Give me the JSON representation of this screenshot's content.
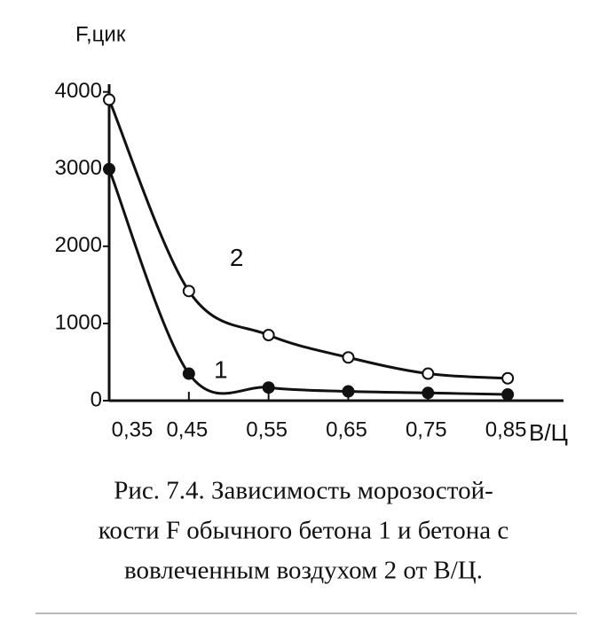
{
  "chart_data": {
    "type": "line",
    "y_label": "F,цик",
    "x_label": "В/Ц",
    "xlim": [
      0.35,
      0.92
    ],
    "ylim": [
      0,
      4100
    ],
    "xticks": [
      {
        "value": 0.35,
        "label": "0,35"
      },
      {
        "value": 0.45,
        "label": "0,45"
      },
      {
        "value": 0.55,
        "label": "0,55"
      },
      {
        "value": 0.65,
        "label": "0,65"
      },
      {
        "value": 0.75,
        "label": "0,75"
      },
      {
        "value": 0.85,
        "label": "0,85"
      }
    ],
    "yticks": [
      0,
      1000,
      2000,
      3000,
      4000
    ],
    "x": [
      0.35,
      0.45,
      0.55,
      0.65,
      0.75,
      0.85
    ],
    "series": [
      {
        "name": "1",
        "color": "#111111",
        "marker": "filled",
        "values": [
          3000,
          350,
          170,
          120,
          100,
          80
        ]
      },
      {
        "name": "2",
        "color": "#111111",
        "marker": "open",
        "values": [
          3900,
          1420,
          850,
          560,
          350,
          290
        ]
      }
    ],
    "caption": [
      "Рис. 7.4. Зависимость морозостой-",
      "кости F обычного бетона 1 и бетона с",
      "вовлеченным воздухом 2 от В/Ц."
    ]
  }
}
